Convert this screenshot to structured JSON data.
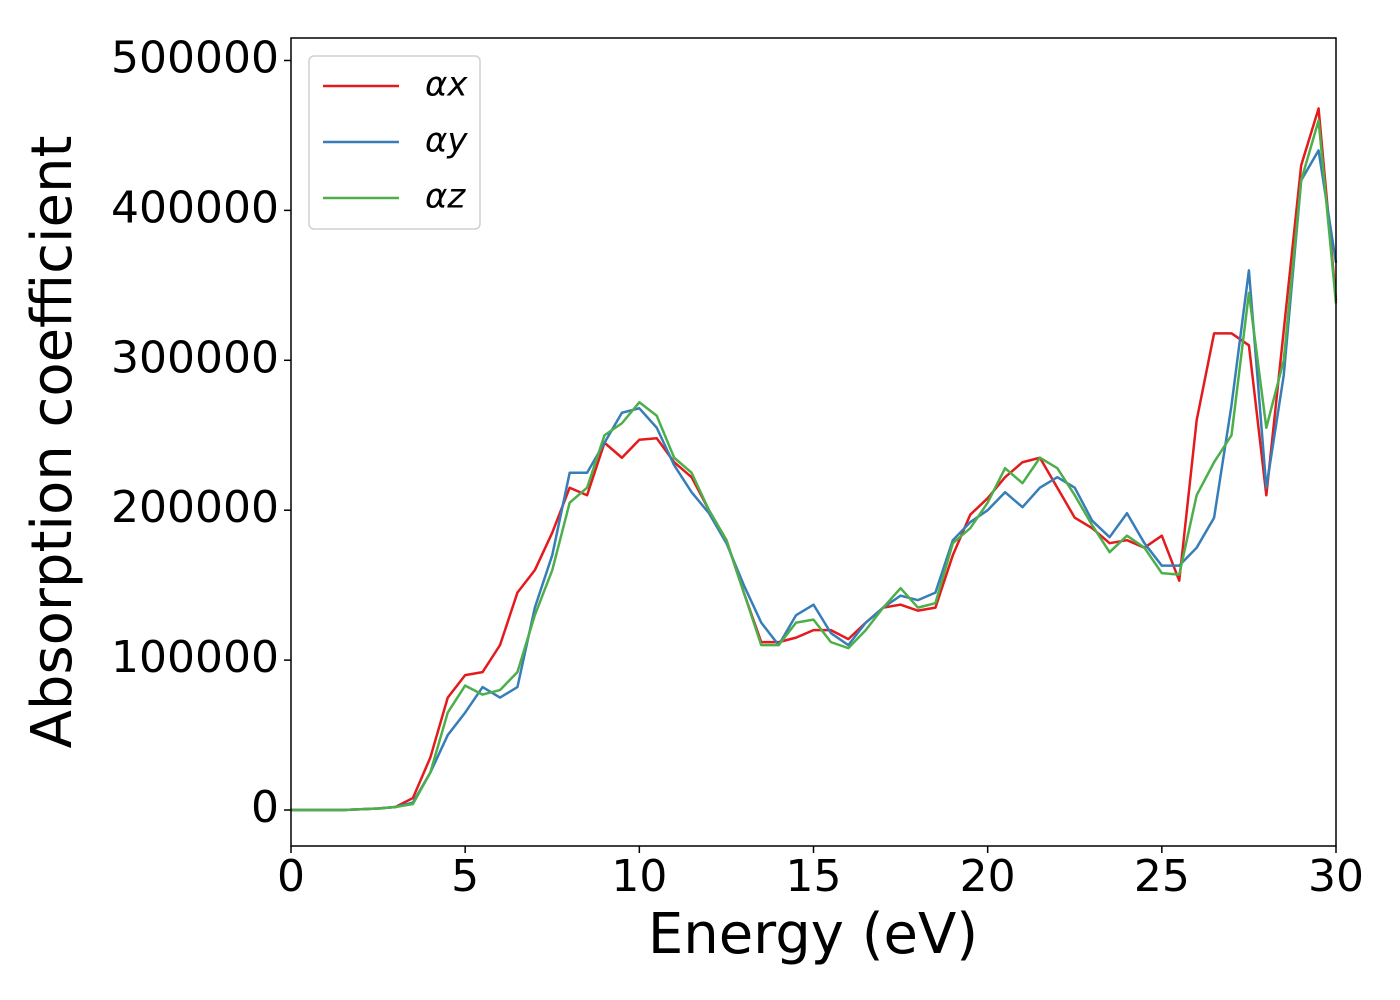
{
  "chart_data": {
    "type": "line",
    "xlabel": "Energy (eV)",
    "ylabel": "Absorption coefficient",
    "x": [
      0,
      0.5,
      1,
      1.5,
      2,
      2.5,
      3,
      3.5,
      4,
      4.5,
      5,
      5.5,
      6,
      6.5,
      7,
      7.5,
      8,
      8.5,
      9,
      9.5,
      10,
      10.5,
      11,
      11.5,
      12,
      12.5,
      13,
      13.5,
      14,
      14.5,
      15,
      15.5,
      16,
      16.5,
      17,
      17.5,
      18,
      18.5,
      19,
      19.5,
      20,
      20.5,
      21,
      21.5,
      22,
      22.5,
      23,
      23.5,
      24,
      24.5,
      25,
      25.5,
      26,
      26.5,
      27,
      27.5,
      28,
      28.5,
      29,
      29.5,
      30
    ],
    "series": [
      {
        "name": "αx",
        "color": "#e41a1c",
        "values": [
          0,
          0,
          0,
          0,
          500,
          1000,
          2000,
          8000,
          35000,
          75000,
          90000,
          92000,
          110000,
          145000,
          160000,
          185000,
          215000,
          210000,
          245000,
          235000,
          247000,
          248000,
          232000,
          222000,
          200000,
          180000,
          145000,
          112000,
          112000,
          115000,
          120000,
          120000,
          114000,
          125000,
          135000,
          137000,
          133000,
          135000,
          170000,
          197000,
          208000,
          222000,
          232000,
          235000,
          215000,
          195000,
          188000,
          178000,
          180000,
          175000,
          183000,
          153000,
          260000,
          318000,
          318000,
          310000,
          210000,
          320000,
          430000,
          468000,
          340000
        ]
      },
      {
        "name": "αy",
        "color": "#377eb8",
        "values": [
          0,
          0,
          0,
          0,
          500,
          1000,
          2000,
          5000,
          25000,
          50000,
          65000,
          82000,
          75000,
          82000,
          135000,
          170000,
          225000,
          225000,
          245000,
          265000,
          268000,
          255000,
          230000,
          212000,
          198000,
          178000,
          150000,
          125000,
          110000,
          130000,
          137000,
          118000,
          110000,
          125000,
          135000,
          143000,
          140000,
          145000,
          180000,
          192000,
          200000,
          212000,
          202000,
          215000,
          222000,
          215000,
          193000,
          182000,
          198000,
          178000,
          163000,
          163000,
          175000,
          195000,
          270000,
          360000,
          215000,
          290000,
          420000,
          440000,
          365000
        ]
      },
      {
        "name": "αz",
        "color": "#4daf4a",
        "values": [
          0,
          0,
          0,
          0,
          500,
          1000,
          2000,
          4000,
          25000,
          65000,
          83000,
          77000,
          80000,
          92000,
          130000,
          160000,
          205000,
          215000,
          250000,
          258000,
          272000,
          263000,
          235000,
          225000,
          200000,
          180000,
          145000,
          110000,
          110000,
          125000,
          127000,
          112000,
          108000,
          120000,
          135000,
          148000,
          135000,
          138000,
          178000,
          188000,
          205000,
          228000,
          218000,
          235000,
          228000,
          210000,
          190000,
          172000,
          183000,
          175000,
          158000,
          157000,
          210000,
          232000,
          250000,
          345000,
          255000,
          300000,
          420000,
          460000,
          338000
        ]
      }
    ],
    "xlim": [
      0,
      30
    ],
    "xticks": [
      0,
      5,
      10,
      15,
      20,
      25,
      30
    ],
    "ylim": [
      -24000,
      515000
    ],
    "yticks": [
      0,
      100000,
      200000,
      300000,
      400000,
      500000
    ],
    "grid": false,
    "legend": "upper left"
  }
}
